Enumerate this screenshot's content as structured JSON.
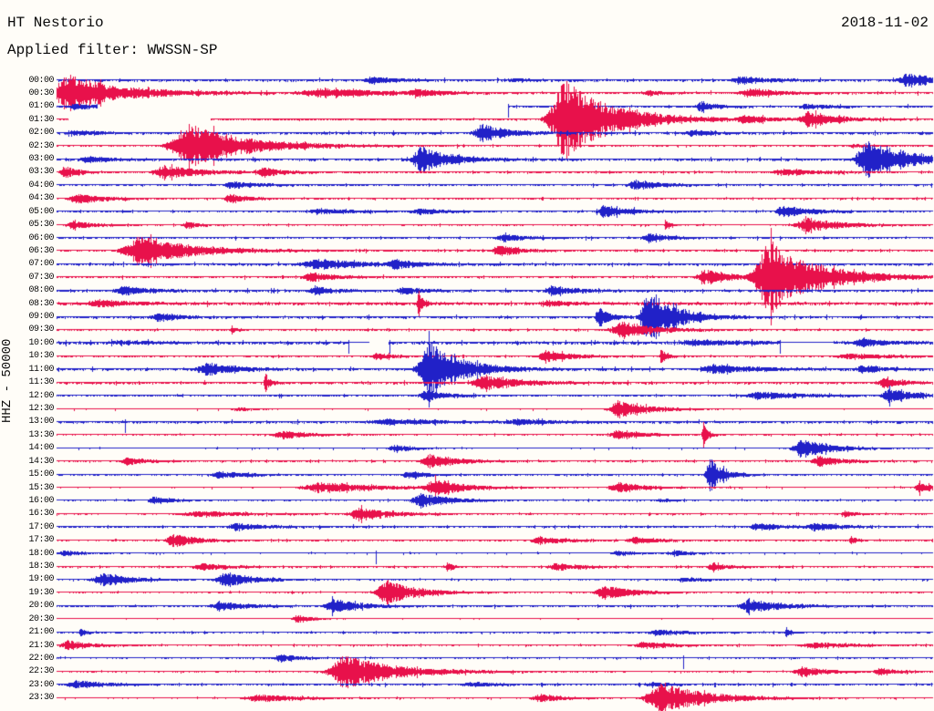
{
  "header": {
    "station": "HT Nestorio",
    "date": "2018-11-02",
    "filter_label": "Applied filter: WWSSN-SP"
  },
  "scale_label": "HHZ - 50000",
  "colors": {
    "blue": "#2121c8",
    "red": "#e8114b",
    "background": "#fffdf8",
    "text": "#0a0a0a"
  },
  "chart_data": {
    "type": "line",
    "subtype": "helicorder-seismogram",
    "title": "HT Nestorio",
    "date": "2018-11-02",
    "filter": "WWSSN-SP",
    "channel_scale_label": "HHZ - 50000",
    "row_interval_minutes": 30,
    "row_time_range": [
      "00:00",
      "23:30"
    ],
    "trace_color_alternation": [
      "blue",
      "red"
    ],
    "burst_format": "[center_fraction_of_row, amplitude_px, width_px]",
    "rows": [
      {
        "t": "00:00",
        "c": "b",
        "n": 1.2,
        "b": [
          [
            0.36,
            4,
            50
          ],
          [
            0.52,
            2,
            35
          ],
          [
            0.78,
            4,
            60
          ],
          [
            0.97,
            9,
            50
          ]
        ]
      },
      {
        "t": "00:30",
        "c": "r",
        "n": 1.1,
        "b": [
          [
            0.012,
            22,
            110
          ],
          [
            0.3,
            5,
            130
          ],
          [
            0.41,
            4,
            40
          ],
          [
            0.675,
            3,
            30
          ],
          [
            0.79,
            5,
            60
          ]
        ]
      },
      {
        "t": "01:00",
        "c": "b",
        "n": 1.1,
        "g": [
          [
            0.046,
            0.515
          ]
        ],
        "k": [
          0.516
        ],
        "b": [
          [
            0.02,
            3,
            45
          ],
          [
            0.735,
            5,
            35
          ],
          [
            0.855,
            3,
            40
          ]
        ]
      },
      {
        "t": "01:30",
        "c": "r",
        "n": 1.1,
        "g": [
          [
            0.013,
            0.175
          ]
        ],
        "b": [
          [
            0.578,
            45,
            100
          ],
          [
            0.785,
            4,
            45
          ],
          [
            0.858,
            9,
            55
          ]
        ]
      },
      {
        "t": "02:00",
        "c": "b",
        "n": 1.2,
        "b": [
          [
            0.02,
            3,
            40
          ],
          [
            0.485,
            10,
            55
          ],
          [
            0.725,
            3,
            45
          ]
        ]
      },
      {
        "t": "02:30",
        "c": "r",
        "n": 0.9,
        "b": [
          [
            0.148,
            25,
            120
          ],
          [
            0.91,
            2,
            40
          ]
        ]
      },
      {
        "t": "03:00",
        "c": "b",
        "n": 1.2,
        "b": [
          [
            0.035,
            3,
            50
          ],
          [
            0.415,
            15,
            60
          ],
          [
            0.925,
            24,
            75
          ]
        ]
      },
      {
        "t": "03:30",
        "c": "r",
        "n": 1.0,
        "b": [
          [
            0.008,
            8,
            28
          ],
          [
            0.122,
            8,
            75
          ],
          [
            0.235,
            5,
            40
          ],
          [
            0.83,
            4,
            70
          ]
        ]
      },
      {
        "t": "04:00",
        "c": "b",
        "n": 1.0,
        "b": [
          [
            0.2,
            4,
            55
          ],
          [
            0.66,
            6,
            50
          ]
        ]
      },
      {
        "t": "04:30",
        "c": "r",
        "n": 0.9,
        "b": [
          [
            0.022,
            6,
            50
          ],
          [
            0.197,
            5,
            38
          ]
        ]
      },
      {
        "t": "05:00",
        "c": "b",
        "n": 0.9,
        "b": [
          [
            0.3,
            3,
            85
          ],
          [
            0.415,
            3,
            55
          ],
          [
            0.625,
            7,
            55
          ],
          [
            0.83,
            7,
            55
          ]
        ]
      },
      {
        "t": "05:30",
        "c": "r",
        "n": 0.8,
        "b": [
          [
            0.018,
            5,
            42
          ],
          [
            0.148,
            4,
            28
          ],
          [
            0.695,
            6,
            10
          ],
          [
            0.855,
            8,
            75
          ]
        ]
      },
      {
        "t": "06:00",
        "c": "b",
        "n": 1.0,
        "b": [
          [
            0.51,
            4,
            48
          ],
          [
            0.675,
            5,
            42
          ]
        ]
      },
      {
        "t": "06:30",
        "c": "r",
        "n": 1.0,
        "b": [
          [
            0.092,
            17,
            105
          ],
          [
            0.505,
            6,
            45
          ]
        ]
      },
      {
        "t": "07:00",
        "c": "b",
        "n": 1.2,
        "b": [
          [
            0.295,
            6,
            95
          ],
          [
            0.385,
            5,
            42
          ]
        ]
      },
      {
        "t": "07:30",
        "c": "r",
        "n": 1.0,
        "b": [
          [
            0.29,
            5,
            52
          ],
          [
            0.74,
            8,
            58
          ],
          [
            0.812,
            42,
            100
          ]
        ]
      },
      {
        "t": "08:00",
        "c": "b",
        "n": 1.2,
        "b": [
          [
            0.075,
            5,
            52
          ],
          [
            0.295,
            4,
            48
          ],
          [
            0.395,
            4,
            38
          ],
          [
            0.565,
            5,
            52
          ]
        ]
      },
      {
        "t": "08:30",
        "c": "r",
        "n": 1.4,
        "b": [
          [
            0.045,
            4,
            60
          ],
          [
            0.413,
            15,
            10
          ],
          [
            0.56,
            3,
            45
          ]
        ]
      },
      {
        "t": "09:00",
        "c": "b",
        "n": 1.2,
        "b": [
          [
            0.115,
            5,
            42
          ],
          [
            0.618,
            13,
            20
          ],
          [
            0.675,
            33,
            55
          ]
        ]
      },
      {
        "t": "09:30",
        "c": "r",
        "n": 0.9,
        "b": [
          [
            0.2,
            5,
            10
          ],
          [
            0.645,
            9,
            75
          ]
        ]
      },
      {
        "t": "10:00",
        "c": "b",
        "n": 1.4,
        "g": [
          [
            0.357,
            0.379
          ]
        ],
        "q": [
          [
            0.333,
            0.356
          ],
          [
            0.826,
            0.887
          ]
        ],
        "k": [
          0.333,
          0.38,
          0.826
        ],
        "b": [
          [
            0.07,
            2,
            60
          ],
          [
            0.73,
            3,
            95
          ],
          [
            0.918,
            5,
            48
          ]
        ]
      },
      {
        "t": "10:30",
        "c": "r",
        "n": 0.9,
        "b": [
          [
            0.365,
            4,
            32
          ],
          [
            0.558,
            6,
            58
          ],
          [
            0.69,
            9,
            12
          ],
          [
            0.905,
            3,
            90
          ]
        ]
      },
      {
        "t": "11:00",
        "c": "b",
        "n": 1.2,
        "b": [
          [
            0.17,
            7,
            65
          ],
          [
            0.424,
            33,
            70
          ],
          [
            0.75,
            5,
            85
          ],
          [
            0.92,
            5,
            38
          ]
        ]
      },
      {
        "t": "11:30",
        "c": "r",
        "n": 1.2,
        "b": [
          [
            0.238,
            12,
            10
          ],
          [
            0.487,
            8,
            75
          ],
          [
            0.945,
            5,
            42
          ]
        ]
      },
      {
        "t": "12:00",
        "c": "b",
        "n": 1.0,
        "b": [
          [
            0.42,
            6,
            45
          ],
          [
            0.8,
            4,
            90
          ],
          [
            0.95,
            8,
            48
          ]
        ]
      },
      {
        "t": "12:30",
        "c": "r",
        "n": 0.6,
        "b": [
          [
            0.205,
            2,
            40
          ],
          [
            0.64,
            10,
            65
          ]
        ]
      },
      {
        "t": "13:00",
        "c": "b",
        "n": 1.2,
        "k": [
          0.078
        ],
        "b": [
          [
            0.375,
            3,
            110
          ],
          [
            0.525,
            3,
            60
          ]
        ]
      },
      {
        "t": "13:30",
        "c": "r",
        "n": 0.8,
        "b": [
          [
            0.255,
            5,
            55
          ],
          [
            0.64,
            5,
            55
          ],
          [
            0.738,
            15,
            10
          ]
        ]
      },
      {
        "t": "14:00",
        "c": "b",
        "n": 0.7,
        "b": [
          [
            0.385,
            4,
            38
          ],
          [
            0.85,
            12,
            58
          ]
        ]
      },
      {
        "t": "14:30",
        "c": "r",
        "n": 0.9,
        "b": [
          [
            0.08,
            4,
            42
          ],
          [
            0.425,
            8,
            58
          ],
          [
            0.87,
            6,
            48
          ]
        ]
      },
      {
        "t": "15:00",
        "c": "b",
        "n": 0.9,
        "b": [
          [
            0.185,
            4,
            58
          ],
          [
            0.4,
            4,
            42
          ],
          [
            0.745,
            20,
            28
          ]
        ]
      },
      {
        "t": "15:30",
        "c": "r",
        "n": 0.7,
        "b": [
          [
            0.3,
            6,
            125
          ],
          [
            0.43,
            10,
            58
          ],
          [
            0.64,
            6,
            58
          ],
          [
            0.985,
            6,
            30
          ]
        ]
      },
      {
        "t": "16:00",
        "c": "b",
        "n": 0.8,
        "b": [
          [
            0.11,
            4,
            42
          ],
          [
            0.415,
            8,
            62
          ],
          [
            0.69,
            2,
            22
          ]
        ]
      },
      {
        "t": "16:30",
        "c": "r",
        "n": 0.8,
        "b": [
          [
            0.16,
            3,
            120
          ],
          [
            0.345,
            8,
            62
          ],
          [
            0.9,
            4,
            22
          ]
        ]
      },
      {
        "t": "17:00",
        "c": "b",
        "n": 1.1,
        "b": [
          [
            0.205,
            4,
            52
          ],
          [
            0.8,
            4,
            48
          ],
          [
            0.865,
            4,
            48
          ]
        ]
      },
      {
        "t": "17:30",
        "c": "r",
        "n": 0.9,
        "b": [
          [
            0.132,
            8,
            48
          ],
          [
            0.55,
            4,
            52
          ],
          [
            0.66,
            4,
            48
          ],
          [
            0.907,
            6,
            10
          ]
        ]
      },
      {
        "t": "18:00",
        "c": "b",
        "n": 0.7,
        "k": [
          0.365
        ],
        "b": [
          [
            0.008,
            3,
            42
          ],
          [
            0.64,
            3,
            38
          ],
          [
            0.705,
            3,
            38
          ]
        ]
      },
      {
        "t": "18:30",
        "c": "r",
        "n": 0.9,
        "b": [
          [
            0.165,
            4,
            58
          ],
          [
            0.446,
            7,
            10
          ],
          [
            0.57,
            4,
            58
          ],
          [
            0.75,
            4,
            38
          ]
        ]
      },
      {
        "t": "19:00",
        "c": "b",
        "n": 0.8,
        "b": [
          [
            0.05,
            8,
            58
          ],
          [
            0.19,
            8,
            62
          ],
          [
            0.715,
            3,
            38
          ]
        ]
      },
      {
        "t": "19:30",
        "c": "r",
        "n": 0.8,
        "b": [
          [
            0.375,
            15,
            62
          ],
          [
            0.625,
            8,
            62
          ]
        ]
      },
      {
        "t": "20:00",
        "c": "b",
        "n": 1.0,
        "b": [
          [
            0.185,
            5,
            58
          ],
          [
            0.315,
            8,
            58
          ],
          [
            0.79,
            8,
            68
          ]
        ]
      },
      {
        "t": "20:30",
        "c": "r",
        "n": 0.5,
        "b": [
          [
            0.275,
            4,
            38
          ]
        ]
      },
      {
        "t": "21:00",
        "c": "b",
        "n": 0.9,
        "b": [
          [
            0.027,
            6,
            10
          ],
          [
            0.685,
            4,
            52
          ],
          [
            0.833,
            5,
            10
          ]
        ]
      },
      {
        "t": "21:30",
        "c": "r",
        "n": 0.8,
        "b": [
          [
            0.012,
            5,
            52
          ],
          [
            0.67,
            4,
            62
          ],
          [
            0.865,
            3,
            95
          ]
        ]
      },
      {
        "t": "22:00",
        "c": "b",
        "n": 0.8,
        "k": [
          0.716
        ],
        "b": [
          [
            0.255,
            5,
            38
          ]
        ]
      },
      {
        "t": "22:30",
        "c": "r",
        "n": 0.8,
        "b": [
          [
            0.327,
            20,
            105
          ],
          [
            0.85,
            6,
            52
          ],
          [
            0.94,
            4,
            38
          ]
        ]
      },
      {
        "t": "23:00",
        "c": "b",
        "n": 1.0,
        "b": [
          [
            0.022,
            4,
            62
          ],
          [
            0.472,
            3,
            48
          ],
          [
            0.68,
            2,
            42
          ]
        ]
      },
      {
        "t": "23:30",
        "c": "r",
        "n": 0.7,
        "b": [
          [
            0.23,
            4,
            95
          ],
          [
            0.55,
            5,
            52
          ],
          [
            0.688,
            18,
            95
          ]
        ]
      }
    ]
  }
}
